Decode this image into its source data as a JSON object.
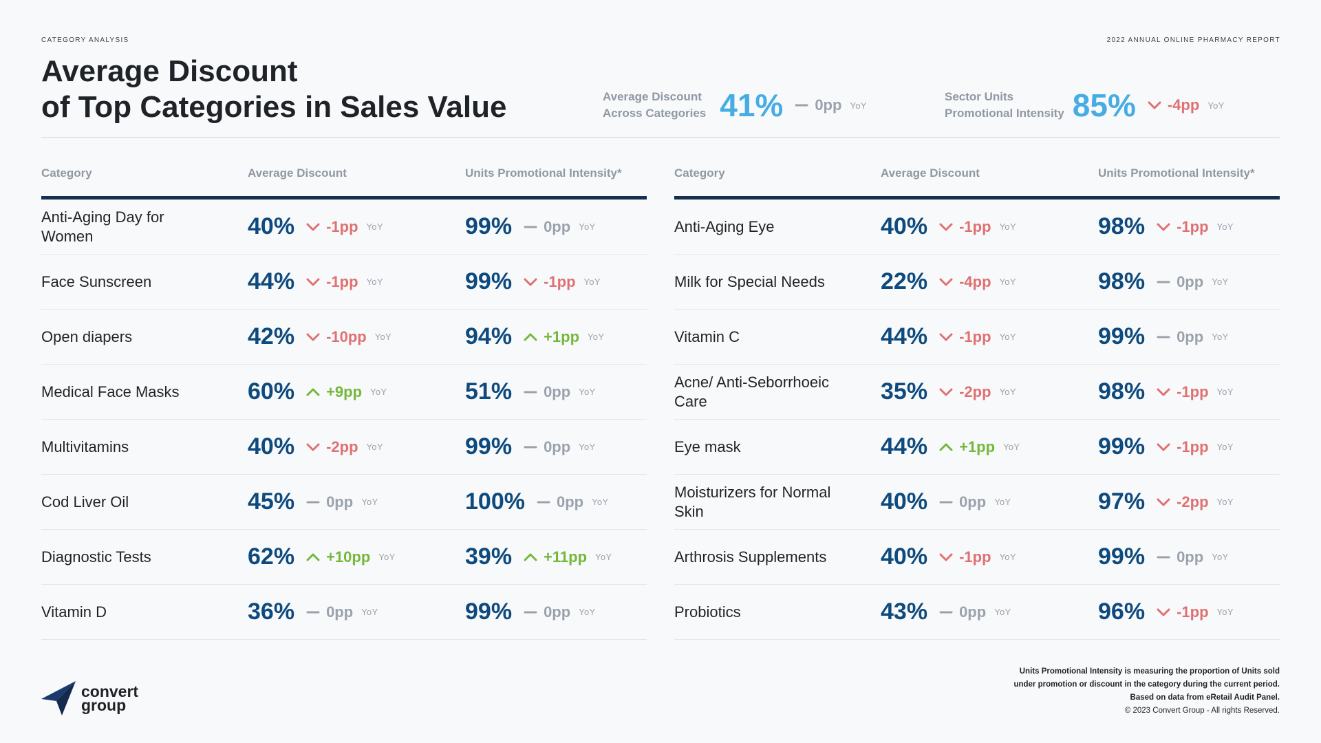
{
  "header": {
    "eyebrow_left": "CATEGORY ANALYSIS",
    "eyebrow_right": "2022 ANNUAL ONLINE PHARMACY REPORT",
    "title_line1": "Average Discount",
    "title_line2": "of Top Categories in Sales Value"
  },
  "kpis": [
    {
      "label_line1": "Average Discount",
      "label_line2": "Across Categories",
      "value": "41%",
      "delta": "0pp",
      "trend": "flat",
      "yoy": "YoY"
    },
    {
      "label_line1": "Sector Units",
      "label_line2": "Promotional Intensity",
      "value": "85%",
      "delta": "-4pp",
      "trend": "down",
      "yoy": "YoY"
    }
  ],
  "columns": {
    "category": "Category",
    "avg_discount": "Average Discount",
    "units_promo": "Units Promotional Intensity*"
  },
  "left_rows": [
    {
      "category": "Anti-Aging Day for Women",
      "disc": "40%",
      "disc_delta": "-1pp",
      "disc_trend": "down",
      "promo": "99%",
      "promo_delta": "0pp",
      "promo_trend": "flat"
    },
    {
      "category": "Face Sunscreen",
      "disc": "44%",
      "disc_delta": "-1pp",
      "disc_trend": "down",
      "promo": "99%",
      "promo_delta": "-1pp",
      "promo_trend": "down"
    },
    {
      "category": "Open diapers",
      "disc": "42%",
      "disc_delta": "-10pp",
      "disc_trend": "down",
      "promo": "94%",
      "promo_delta": "+1pp",
      "promo_trend": "up"
    },
    {
      "category": "Medical Face Masks",
      "disc": "60%",
      "disc_delta": "+9pp",
      "disc_trend": "up",
      "promo": "51%",
      "promo_delta": "0pp",
      "promo_trend": "flat"
    },
    {
      "category": "Multivitamins",
      "disc": "40%",
      "disc_delta": "-2pp",
      "disc_trend": "down",
      "promo": "99%",
      "promo_delta": "0pp",
      "promo_trend": "flat"
    },
    {
      "category": "Cod Liver Oil",
      "disc": "45%",
      "disc_delta": "0pp",
      "disc_trend": "flat",
      "promo": "100%",
      "promo_delta": "0pp",
      "promo_trend": "flat"
    },
    {
      "category": "Diagnostic Tests",
      "disc": "62%",
      "disc_delta": "+10pp",
      "disc_trend": "up",
      "promo": "39%",
      "promo_delta": "+11pp",
      "promo_trend": "up"
    },
    {
      "category": "Vitamin D",
      "disc": "36%",
      "disc_delta": "0pp",
      "disc_trend": "flat",
      "promo": "99%",
      "promo_delta": "0pp",
      "promo_trend": "flat"
    }
  ],
  "right_rows": [
    {
      "category": "Anti-Aging Eye",
      "disc": "40%",
      "disc_delta": "-1pp",
      "disc_trend": "down",
      "promo": "98%",
      "promo_delta": "-1pp",
      "promo_trend": "down"
    },
    {
      "category": "Milk for Special Needs",
      "disc": "22%",
      "disc_delta": "-4pp",
      "disc_trend": "down",
      "promo": "98%",
      "promo_delta": "0pp",
      "promo_trend": "flat"
    },
    {
      "category": "Vitamin C",
      "disc": "44%",
      "disc_delta": "-1pp",
      "disc_trend": "down",
      "promo": "99%",
      "promo_delta": "0pp",
      "promo_trend": "flat"
    },
    {
      "category": "Acne/ Anti-Seborrhoeic Care",
      "disc": "35%",
      "disc_delta": "-2pp",
      "disc_trend": "down",
      "promo": "98%",
      "promo_delta": "-1pp",
      "promo_trend": "down"
    },
    {
      "category": "Eye mask",
      "disc": "44%",
      "disc_delta": "+1pp",
      "disc_trend": "up",
      "promo": "99%",
      "promo_delta": "-1pp",
      "promo_trend": "down"
    },
    {
      "category": "Moisturizers for Normal Skin",
      "disc": "40%",
      "disc_delta": "0pp",
      "disc_trend": "flat",
      "promo": "97%",
      "promo_delta": "-2pp",
      "promo_trend": "down"
    },
    {
      "category": "Arthrosis Supplements",
      "disc": "40%",
      "disc_delta": "-1pp",
      "disc_trend": "down",
      "promo": "99%",
      "promo_delta": "0pp",
      "promo_trend": "flat"
    },
    {
      "category": "Probiotics",
      "disc": "43%",
      "disc_delta": "0pp",
      "disc_trend": "flat",
      "promo": "96%",
      "promo_delta": "-1pp",
      "promo_trend": "down"
    }
  ],
  "yoy_label": "YoY",
  "colors": {
    "kpi_value": "#45ade3",
    "value": "#0e4a7e",
    "down": "#e07071",
    "up": "#74b83a",
    "flat": "#9aa2ac",
    "rule": "#172f4f"
  },
  "logo": {
    "line1": "convert",
    "line2": "group"
  },
  "footnote": {
    "line1": "Units Promotional Intensity is measuring the proportion of Units sold",
    "line2": "under promotion or discount in the category during the current period.",
    "line3": "Based on data from eRetail Audit Panel.",
    "line4": "© 2023 Convert Group - All rights Reserved."
  }
}
